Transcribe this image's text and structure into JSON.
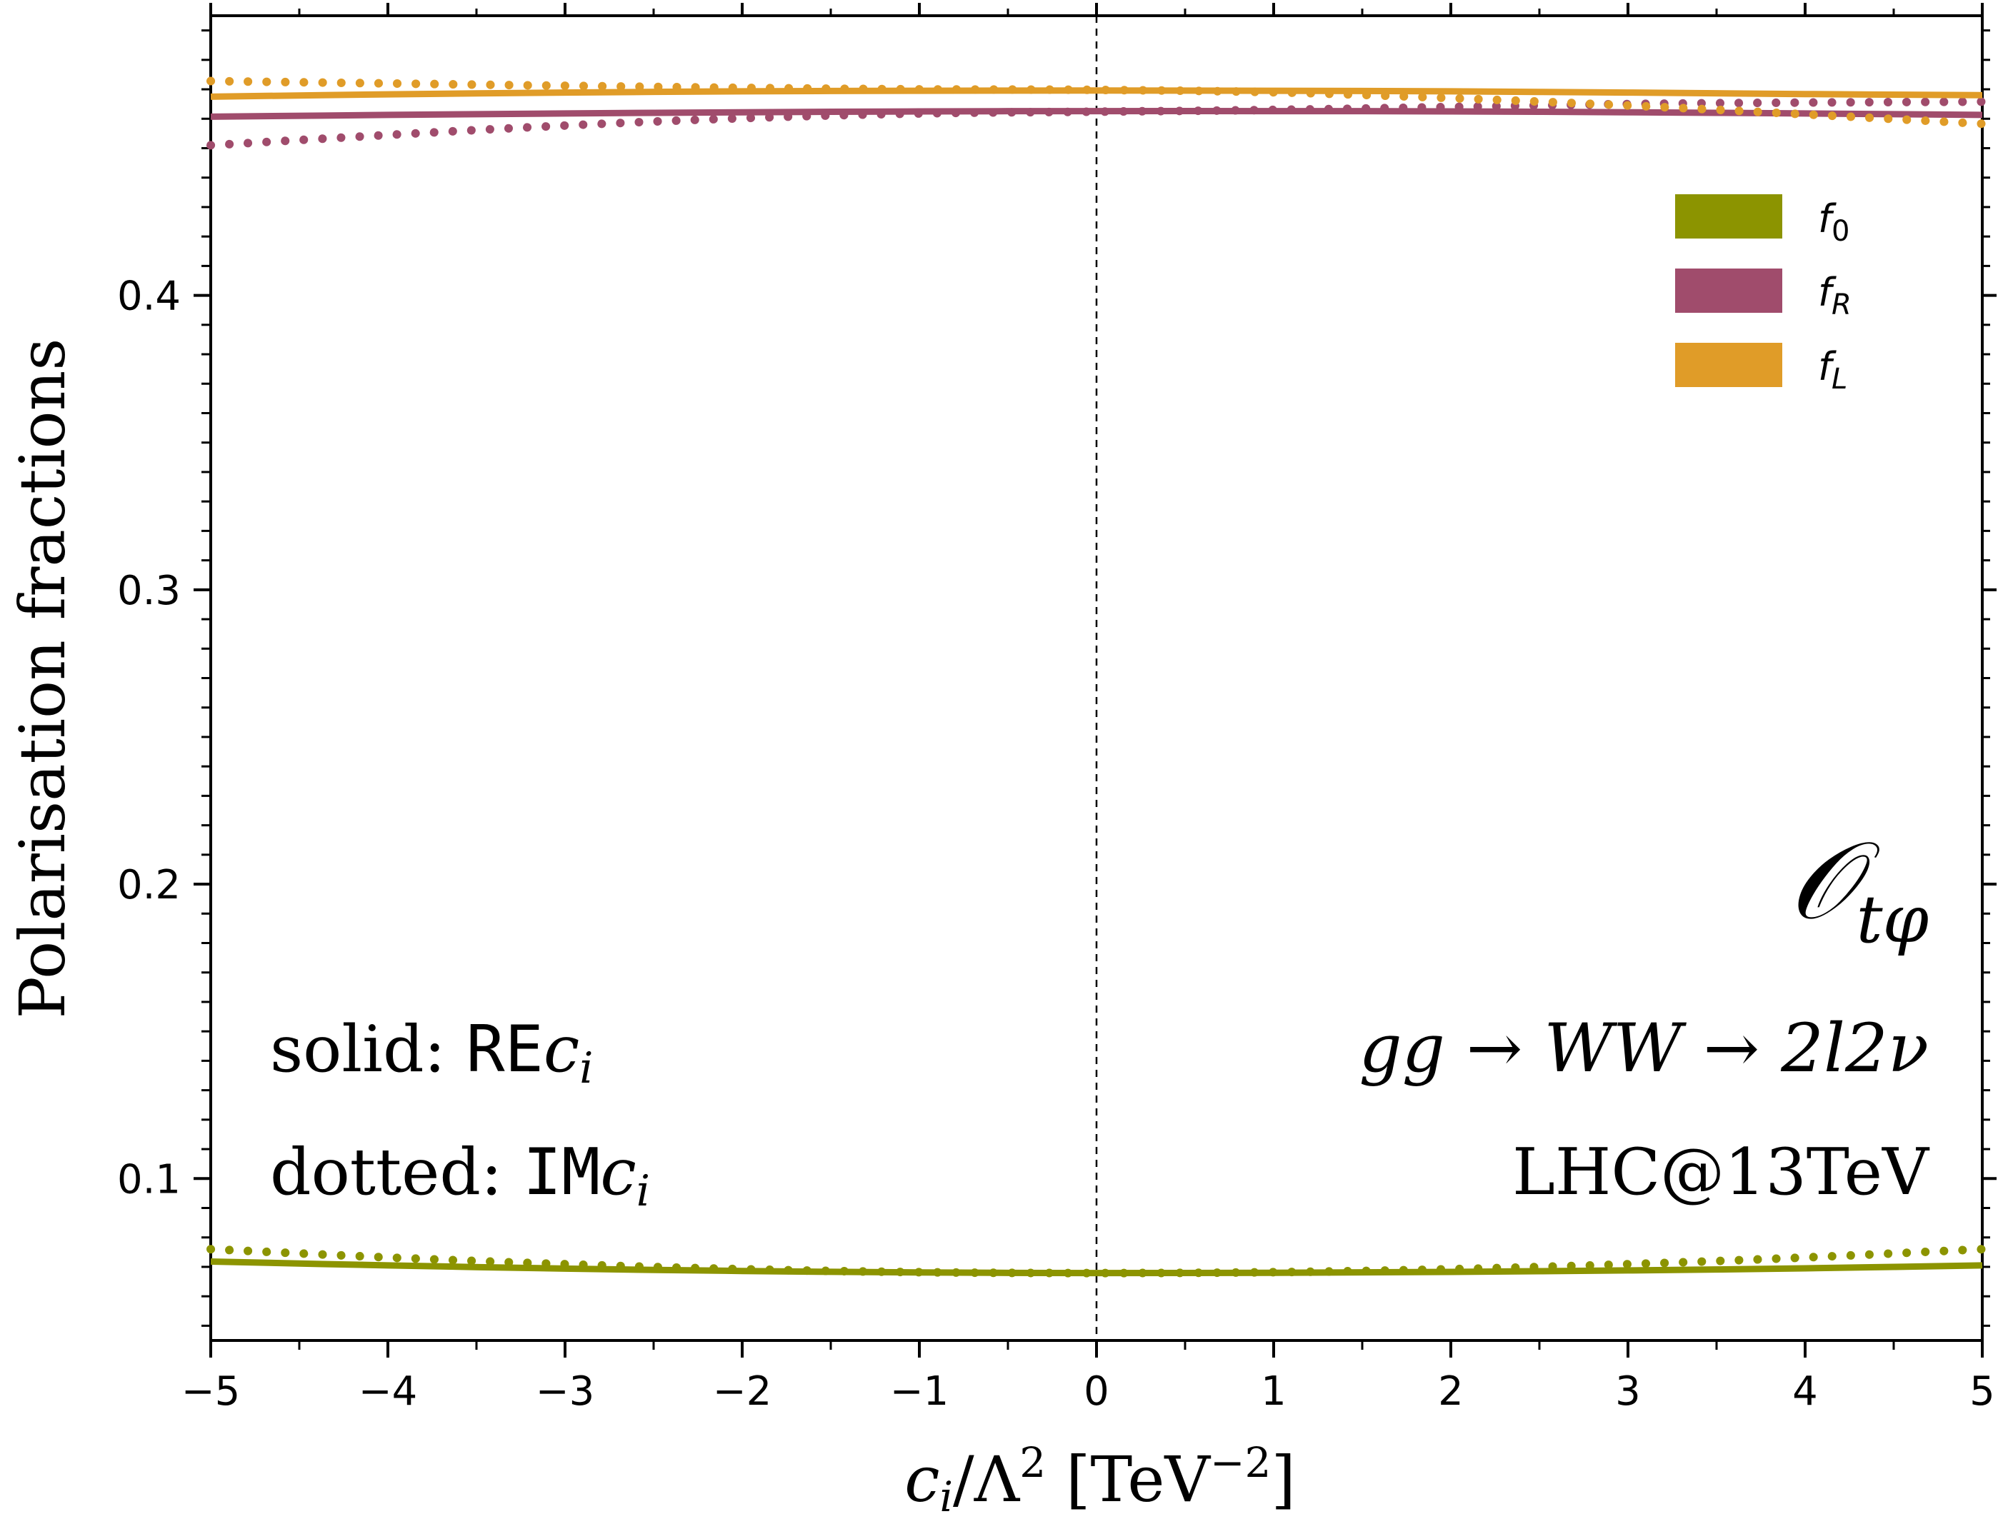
{
  "chart_data": {
    "type": "line",
    "xlabel": "c_i/Λ² [TeV⁻²]",
    "ylabel": "Polarisation fractions",
    "xlim": [
      -5,
      5
    ],
    "ylim": [
      0.045,
      0.495
    ],
    "x_ticks": [
      -5,
      -4,
      -3,
      -2,
      -1,
      0,
      1,
      2,
      3,
      4,
      5
    ],
    "x_tick_labels": [
      "−5",
      "−4",
      "−3",
      "−2",
      "−1",
      "0",
      "1",
      "2",
      "3",
      "4",
      "5"
    ],
    "y_ticks": [
      0.1,
      0.2,
      0.3,
      0.4
    ],
    "y_tick_labels": [
      "0.1",
      "0.2",
      "0.3",
      "0.4"
    ],
    "grid": false,
    "vertical_reference_line": {
      "x": 0,
      "style": "dashed"
    },
    "legend": {
      "placement": "top-right",
      "entries": [
        {
          "label": "f",
          "sub": "0",
          "color": "#8c9400"
        },
        {
          "label": "f",
          "sub": "R",
          "color": "#a04c6c"
        },
        {
          "label": "f",
          "sub": "L",
          "color": "#e09c28"
        }
      ]
    },
    "annotations": {
      "operator": {
        "main": "𝒪",
        "sub": "tφ"
      },
      "process": "gg → WW → 2l2ν",
      "collider": "LHC@13TeV",
      "solid": {
        "prefix": "solid: ",
        "code": "RE",
        "var": "c",
        "sub": "i"
      },
      "dotted": {
        "prefix": "dotted: ",
        "code": "IM",
        "var": "c",
        "sub": "i"
      }
    },
    "x": [
      -5,
      -4,
      -3,
      -2,
      -1,
      0,
      1,
      2,
      3,
      4,
      5
    ],
    "series": [
      {
        "key": "f0",
        "style": "solid",
        "color": "#8c9400",
        "values": [
          0.0718,
          0.0705,
          0.0694,
          0.0686,
          0.0681,
          0.0679,
          0.068,
          0.0683,
          0.0688,
          0.0695,
          0.0705
        ]
      },
      {
        "key": "f0",
        "style": "dotted",
        "color": "#8c9400",
        "values": [
          0.076,
          0.0732,
          0.0709,
          0.0692,
          0.0682,
          0.0679,
          0.0682,
          0.0692,
          0.0709,
          0.0732,
          0.076
        ]
      },
      {
        "key": "fR",
        "style": "solid",
        "color": "#a04c6c",
        "values": [
          0.4607,
          0.4613,
          0.4618,
          0.4622,
          0.4625,
          0.4626,
          0.4626,
          0.4625,
          0.4622,
          0.4618,
          0.4613
        ]
      },
      {
        "key": "fR",
        "style": "dotted",
        "color": "#a04c6c",
        "values": [
          0.451,
          0.4545,
          0.4577,
          0.4602,
          0.4618,
          0.4624,
          0.463,
          0.464,
          0.465,
          0.4655,
          0.4658
        ]
      },
      {
        "key": "fL",
        "style": "solid",
        "color": "#e09c28",
        "values": [
          0.4675,
          0.4683,
          0.4689,
          0.4693,
          0.4695,
          0.4696,
          0.4695,
          0.4693,
          0.4689,
          0.4684,
          0.468
        ]
      },
      {
        "key": "fL",
        "style": "dotted",
        "color": "#e09c28",
        "values": [
          0.4728,
          0.472,
          0.4712,
          0.4705,
          0.47,
          0.4698,
          0.469,
          0.467,
          0.4645,
          0.4615,
          0.4583
        ]
      }
    ]
  }
}
